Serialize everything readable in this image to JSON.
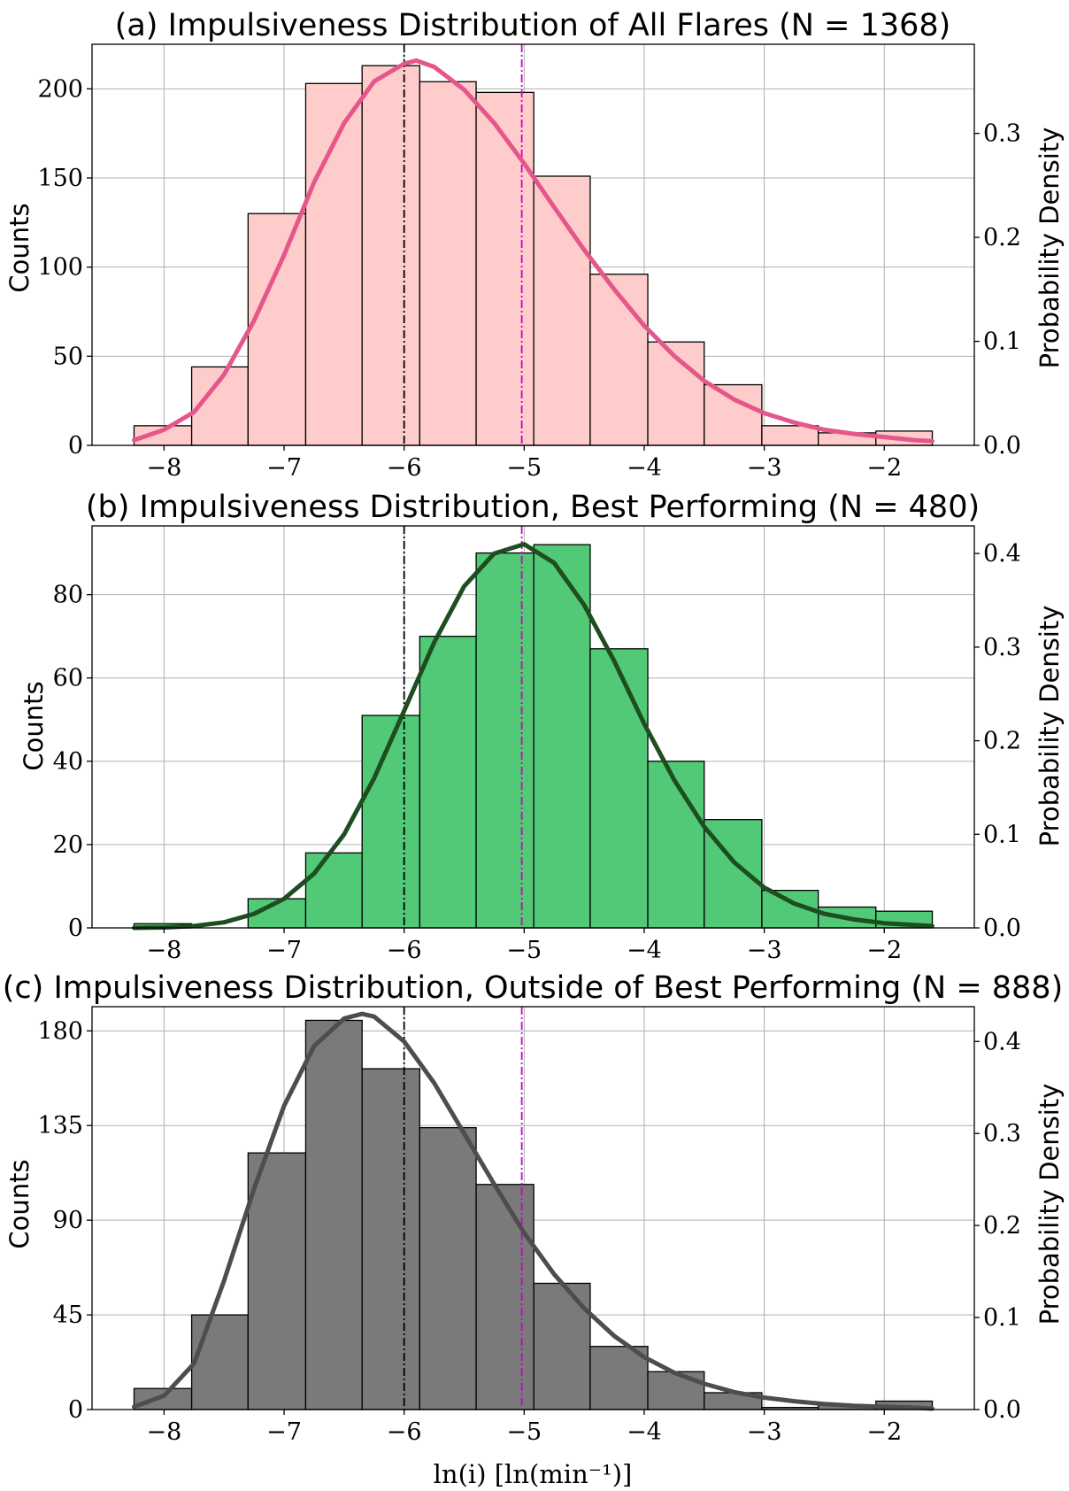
{
  "chart_data": [
    {
      "type": "bar",
      "title": "(a) Impulsiveness Distribution of All Flares (N = 1368)",
      "ylabel": "Counts",
      "ylabel_right": "Probability Density",
      "xlabel": "",
      "color": "#ffcccc",
      "curve_color": "#e5578a",
      "bin_edges": [
        -8.25,
        -7.77,
        -7.3,
        -6.82,
        -6.35,
        -5.87,
        -5.4,
        -4.92,
        -4.45,
        -3.97,
        -3.5,
        -3.02,
        -2.55,
        -2.07,
        -1.6
      ],
      "values": [
        11,
        44,
        130,
        203,
        213,
        204,
        198,
        151,
        96,
        58,
        34,
        11,
        7,
        8
      ],
      "xlim": [
        -8.6,
        -1.25
      ],
      "ylim": [
        0,
        225
      ],
      "yticks": [
        0,
        50,
        100,
        150,
        200
      ],
      "ylim_right": [
        0,
        0.3857
      ],
      "yticks_right": [
        0.0,
        0.1,
        0.2,
        0.3
      ],
      "yticks_right_labels": [
        "0.0",
        "0.1",
        "0.2",
        "0.3"
      ],
      "xticks": [
        -8,
        -7,
        -6,
        -5,
        -4,
        -3,
        -2
      ],
      "xticks_labels": [
        "−8",
        "−7",
        "−6",
        "−5",
        "−4",
        "−3",
        "−2"
      ],
      "vlines": [
        {
          "x": -6.0,
          "color": "#000000"
        },
        {
          "x": -5.02,
          "color": "#cc00cc"
        }
      ],
      "curve": {
        "x": [
          -8.25,
          -8.0,
          -7.75,
          -7.5,
          -7.25,
          -7.0,
          -6.75,
          -6.5,
          -6.25,
          -6.0,
          -5.9,
          -5.75,
          -5.5,
          -5.25,
          -5.0,
          -4.75,
          -4.5,
          -4.25,
          -4.0,
          -3.75,
          -3.5,
          -3.25,
          -3.0,
          -2.75,
          -2.5,
          -2.25,
          -2.0,
          -1.75,
          -1.6
        ],
        "y": [
          0.005,
          0.015,
          0.032,
          0.068,
          0.12,
          0.183,
          0.253,
          0.31,
          0.35,
          0.367,
          0.37,
          0.364,
          0.342,
          0.31,
          0.271,
          0.229,
          0.188,
          0.15,
          0.115,
          0.086,
          0.062,
          0.044,
          0.031,
          0.022,
          0.015,
          0.011,
          0.008,
          0.005,
          0.004
        ]
      }
    },
    {
      "type": "bar",
      "title": "(b) Impulsiveness Distribution, Best Performing (N = 480)",
      "ylabel": "Counts",
      "ylabel_right": "Probability Density",
      "xlabel": "",
      "color": "#51c977",
      "curve_color": "#1e4d20",
      "bin_edges": [
        -8.25,
        -7.77,
        -7.3,
        -6.82,
        -6.35,
        -5.87,
        -5.4,
        -4.92,
        -4.45,
        -3.97,
        -3.5,
        -3.02,
        -2.55,
        -2.07,
        -1.6
      ],
      "values": [
        1,
        0,
        7,
        18,
        51,
        70,
        90,
        92,
        67,
        40,
        26,
        9,
        5,
        4
      ],
      "xlim": [
        -8.6,
        -1.25
      ],
      "ylim": [
        0,
        96.5
      ],
      "yticks": [
        0,
        20,
        40,
        60,
        80
      ],
      "ylim_right": [
        0,
        0.4295
      ],
      "yticks_right": [
        0.0,
        0.1,
        0.2,
        0.3,
        0.4
      ],
      "yticks_right_labels": [
        "0.0",
        "0.1",
        "0.2",
        "0.3",
        "0.4"
      ],
      "xticks": [
        -8,
        -7,
        -6,
        -5,
        -4,
        -3,
        -2
      ],
      "xticks_labels": [
        "−8",
        "−7",
        "−6",
        "−5",
        "−4",
        "−3",
        "−2"
      ],
      "vlines": [
        {
          "x": -6.0,
          "color": "#000000"
        },
        {
          "x": -5.02,
          "color": "#cc00cc"
        }
      ],
      "curve": {
        "x": [
          -8.25,
          -8.0,
          -7.75,
          -7.5,
          -7.25,
          -7.0,
          -6.75,
          -6.5,
          -6.25,
          -6.0,
          -5.75,
          -5.5,
          -5.25,
          -5.0,
          -4.75,
          -4.5,
          -4.25,
          -4.0,
          -3.75,
          -3.5,
          -3.25,
          -3.0,
          -2.75,
          -2.5,
          -2.25,
          -2.0,
          -1.75,
          -1.6
        ],
        "y": [
          0.0,
          0.0005,
          0.002,
          0.006,
          0.015,
          0.031,
          0.058,
          0.1,
          0.16,
          0.232,
          0.305,
          0.365,
          0.4,
          0.41,
          0.39,
          0.345,
          0.285,
          0.218,
          0.158,
          0.108,
          0.07,
          0.043,
          0.026,
          0.015,
          0.009,
          0.005,
          0.003,
          0.002
        ]
      }
    },
    {
      "type": "bar",
      "title": "(c) Impulsiveness Distribution, Outside of Best Performing (N = 888)",
      "ylabel": "Counts",
      "ylabel_right": "Probability Density",
      "xlabel": "ln(i) [ln(min⁻¹)]",
      "color": "#7a7a7a",
      "curve_color": "#4d4d4d",
      "bin_edges": [
        -8.25,
        -7.77,
        -7.3,
        -6.82,
        -6.35,
        -5.87,
        -5.4,
        -4.92,
        -4.45,
        -3.97,
        -3.5,
        -3.02,
        -2.55,
        -2.07,
        -1.6
      ],
      "values": [
        10,
        45,
        122,
        185,
        162,
        134,
        107,
        60,
        30,
        18,
        8,
        1,
        2,
        4
      ],
      "xlim": [
        -8.6,
        -1.25
      ],
      "ylim": [
        0,
        191.5
      ],
      "yticks": [
        0,
        45,
        90,
        135,
        180
      ],
      "yticks_labels": [
        "0",
        "45",
        "90",
        "135",
        "180"
      ],
      "ylim_right": [
        0,
        0.4378
      ],
      "yticks_right": [
        0.0,
        0.1,
        0.2,
        0.3,
        0.4
      ],
      "yticks_right_labels": [
        "0.0",
        "0.1",
        "0.2",
        "0.3",
        "0.4"
      ],
      "xticks": [
        -8,
        -7,
        -6,
        -5,
        -4,
        -3,
        -2
      ],
      "xticks_labels": [
        "−8",
        "−7",
        "−6",
        "−5",
        "−4",
        "−3",
        "−2"
      ],
      "vlines": [
        {
          "x": -6.0,
          "color": "#000000"
        },
        {
          "x": -5.02,
          "color": "#cc00cc"
        }
      ],
      "curve": {
        "x": [
          -8.25,
          -8.0,
          -7.75,
          -7.5,
          -7.25,
          -7.0,
          -6.75,
          -6.5,
          -6.35,
          -6.25,
          -6.0,
          -5.75,
          -5.5,
          -5.25,
          -5.0,
          -4.75,
          -4.5,
          -4.25,
          -4.0,
          -3.75,
          -3.5,
          -3.25,
          -3.0,
          -2.75,
          -2.5,
          -2.25,
          -2.0,
          -1.75,
          -1.6
        ],
        "y": [
          0.003,
          0.015,
          0.05,
          0.14,
          0.24,
          0.33,
          0.395,
          0.425,
          0.43,
          0.427,
          0.4,
          0.355,
          0.3,
          0.245,
          0.192,
          0.147,
          0.11,
          0.08,
          0.057,
          0.04,
          0.028,
          0.019,
          0.013,
          0.009,
          0.006,
          0.004,
          0.003,
          0.002,
          0.001
        ]
      }
    }
  ]
}
